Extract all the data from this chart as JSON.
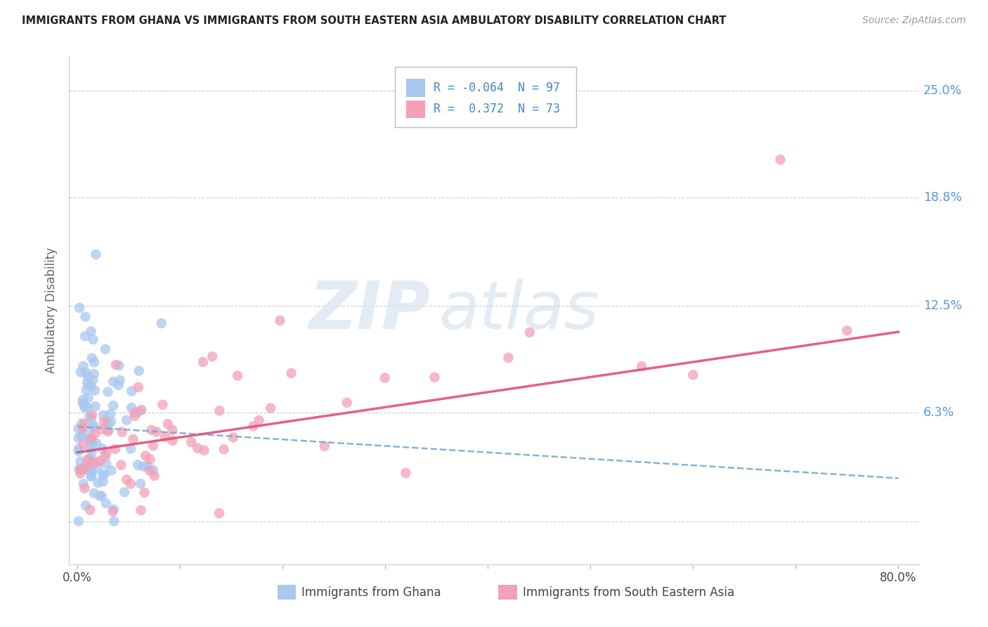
{
  "title": "IMMIGRANTS FROM GHANA VS IMMIGRANTS FROM SOUTH EASTERN ASIA AMBULATORY DISABILITY CORRELATION CHART",
  "source": "Source: ZipAtlas.com",
  "ylabel": "Ambulatory Disability",
  "legend_label1": "Immigrants from Ghana",
  "legend_label2": "Immigrants from South Eastern Asia",
  "R1": -0.064,
  "N1": 97,
  "R2": 0.372,
  "N2": 73,
  "color1": "#a8c8f0",
  "color2": "#f4a0b8",
  "trend1_color": "#7aaad0",
  "trend2_color": "#e0507a",
  "ytick_vals": [
    0.0,
    0.063,
    0.125,
    0.188,
    0.25
  ],
  "ytick_labels_right": [
    "",
    "6.3%",
    "12.5%",
    "18.8%",
    "25.0%"
  ],
  "watermark_zip": "ZIP",
  "watermark_atlas": "atlas",
  "legend_box_color": "#e8e8f0",
  "legend_border_color": "#bbbbcc"
}
